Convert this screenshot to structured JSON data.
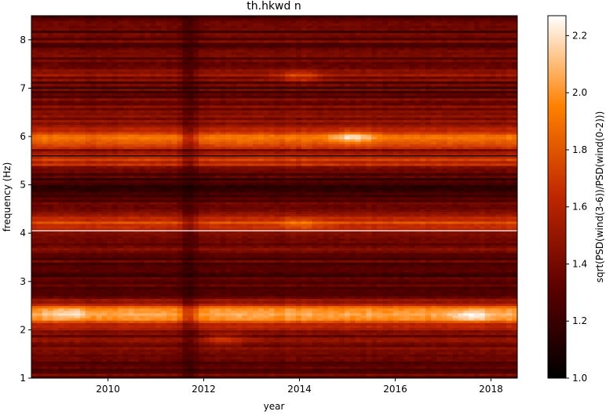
{
  "chart_data": {
    "type": "heatmap",
    "title": "th.hkwd n",
    "xlabel": "year",
    "ylabel": "frequency (Hz)",
    "colorbar_label": "sqrt(PSD(wind(3-6))/PSD(wind(0-2)))",
    "colormap": "gist_heat",
    "xlim": [
      2008.4,
      2018.55
    ],
    "ylim": [
      1.0,
      8.5
    ],
    "clim": [
      1.0,
      2.27
    ],
    "x_ticks": [
      2010,
      2012,
      2014,
      2016,
      2018
    ],
    "x_tick_labels": [
      "2010",
      "2012",
      "2014",
      "2016",
      "2018"
    ],
    "y_ticks": [
      1,
      2,
      3,
      4,
      5,
      6,
      7,
      8
    ],
    "y_tick_labels": [
      "1",
      "2",
      "3",
      "4",
      "5",
      "6",
      "7",
      "8"
    ],
    "cbar_ticks": [
      1.0,
      1.2,
      1.4,
      1.6,
      1.8,
      2.0,
      2.2
    ],
    "cbar_tick_labels": [
      "1.0",
      "1.2",
      "1.4",
      "1.6",
      "1.8",
      "2.0",
      "2.2"
    ],
    "frequency_bands": [
      {
        "f": 1.05,
        "v": 1.35
      },
      {
        "f": 1.2,
        "v": 1.3
      },
      {
        "f": 1.35,
        "v": 1.3
      },
      {
        "f": 1.5,
        "v": 1.35
      },
      {
        "f": 1.65,
        "v": 1.4
      },
      {
        "f": 1.8,
        "v": 1.45
      },
      {
        "f": 1.95,
        "v": 1.4
      },
      {
        "f": 2.05,
        "v": 1.5
      },
      {
        "f": 2.15,
        "v": 1.75
      },
      {
        "f": 2.25,
        "v": 1.95
      },
      {
        "f": 2.35,
        "v": 2.05
      },
      {
        "f": 2.45,
        "v": 1.85
      },
      {
        "f": 2.6,
        "v": 1.45
      },
      {
        "f": 2.8,
        "v": 1.3
      },
      {
        "f": 3.0,
        "v": 1.25
      },
      {
        "f": 3.2,
        "v": 1.3
      },
      {
        "f": 3.4,
        "v": 1.3
      },
      {
        "f": 3.6,
        "v": 1.35
      },
      {
        "f": 3.8,
        "v": 1.4
      },
      {
        "f": 4.0,
        "v": 1.45
      },
      {
        "f": 4.2,
        "v": 1.75
      },
      {
        "f": 4.4,
        "v": 1.45
      },
      {
        "f": 4.6,
        "v": 1.3
      },
      {
        "f": 4.8,
        "v": 1.25
      },
      {
        "f": 5.0,
        "v": 1.15
      },
      {
        "f": 5.2,
        "v": 1.3
      },
      {
        "f": 5.4,
        "v": 1.55
      },
      {
        "f": 5.55,
        "v": 1.75
      },
      {
        "f": 5.7,
        "v": 1.45
      },
      {
        "f": 5.85,
        "v": 1.7
      },
      {
        "f": 6.0,
        "v": 1.85
      },
      {
        "f": 6.15,
        "v": 1.7
      },
      {
        "f": 6.35,
        "v": 1.45
      },
      {
        "f": 6.6,
        "v": 1.4
      },
      {
        "f": 6.85,
        "v": 1.35
      },
      {
        "f": 7.05,
        "v": 1.3
      },
      {
        "f": 7.25,
        "v": 1.45
      },
      {
        "f": 7.5,
        "v": 1.4
      },
      {
        "f": 7.75,
        "v": 1.35
      },
      {
        "f": 8.0,
        "v": 1.35
      },
      {
        "f": 8.25,
        "v": 1.3
      },
      {
        "f": 8.45,
        "v": 1.25
      }
    ],
    "low_year_bands": [
      {
        "x": 2011.7,
        "v": 0.75
      },
      {
        "x": 2009.7,
        "v": 0.1
      }
    ],
    "hotspots": [
      {
        "x": 2015.1,
        "f": 6.0,
        "v": 0.3
      },
      {
        "x": 2014.0,
        "f": 7.25,
        "v": 0.25
      },
      {
        "x": 2017.6,
        "f": 2.3,
        "v": 0.2
      },
      {
        "x": 2009.2,
        "f": 2.35,
        "v": 0.15
      },
      {
        "x": 2012.4,
        "f": 1.8,
        "v": 0.2
      },
      {
        "x": 2014.0,
        "f": 4.2,
        "v": 0.15
      }
    ],
    "lines": [
      {
        "f": 4.05,
        "color": "#ffffff"
      },
      {
        "f": 7.0,
        "color": "#000000"
      },
      {
        "f": 5.6,
        "color": "#000000"
      }
    ],
    "grid": false
  }
}
